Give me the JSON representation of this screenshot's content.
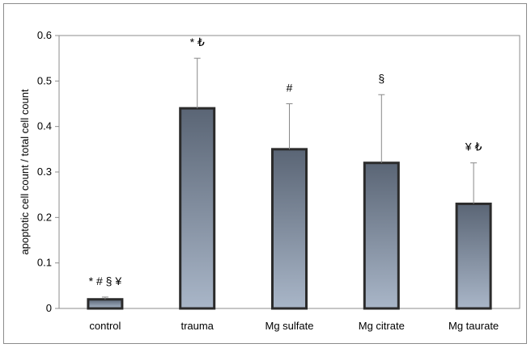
{
  "chart_data": {
    "type": "bar",
    "title": "",
    "xlabel": "",
    "ylabel": "apoptotic cell count / total cell count",
    "ylim": [
      0,
      0.6
    ],
    "yticks": [
      "0",
      "0.1",
      "0.2",
      "0.3",
      "0.4",
      "0.5",
      "0.6"
    ],
    "grid": false,
    "legend": "none",
    "categories": [
      "control",
      "trauma",
      "Mg sulfate",
      "Mg citrate",
      "Mg taurate"
    ],
    "values": [
      0.02,
      0.44,
      0.35,
      0.32,
      0.23
    ],
    "errors": [
      0.005,
      0.11,
      0.1,
      0.15,
      0.09
    ],
    "annotations": [
      "* # § ¥",
      "* ₺",
      "#",
      "§",
      "¥ ₺"
    ],
    "colors": {
      "bar_top": "#5a6575",
      "bar_bottom": "#a9b6c8",
      "bar_border": "#2b2b2b",
      "error_bar": "#888888",
      "axis": "#8c8c8c"
    }
  }
}
